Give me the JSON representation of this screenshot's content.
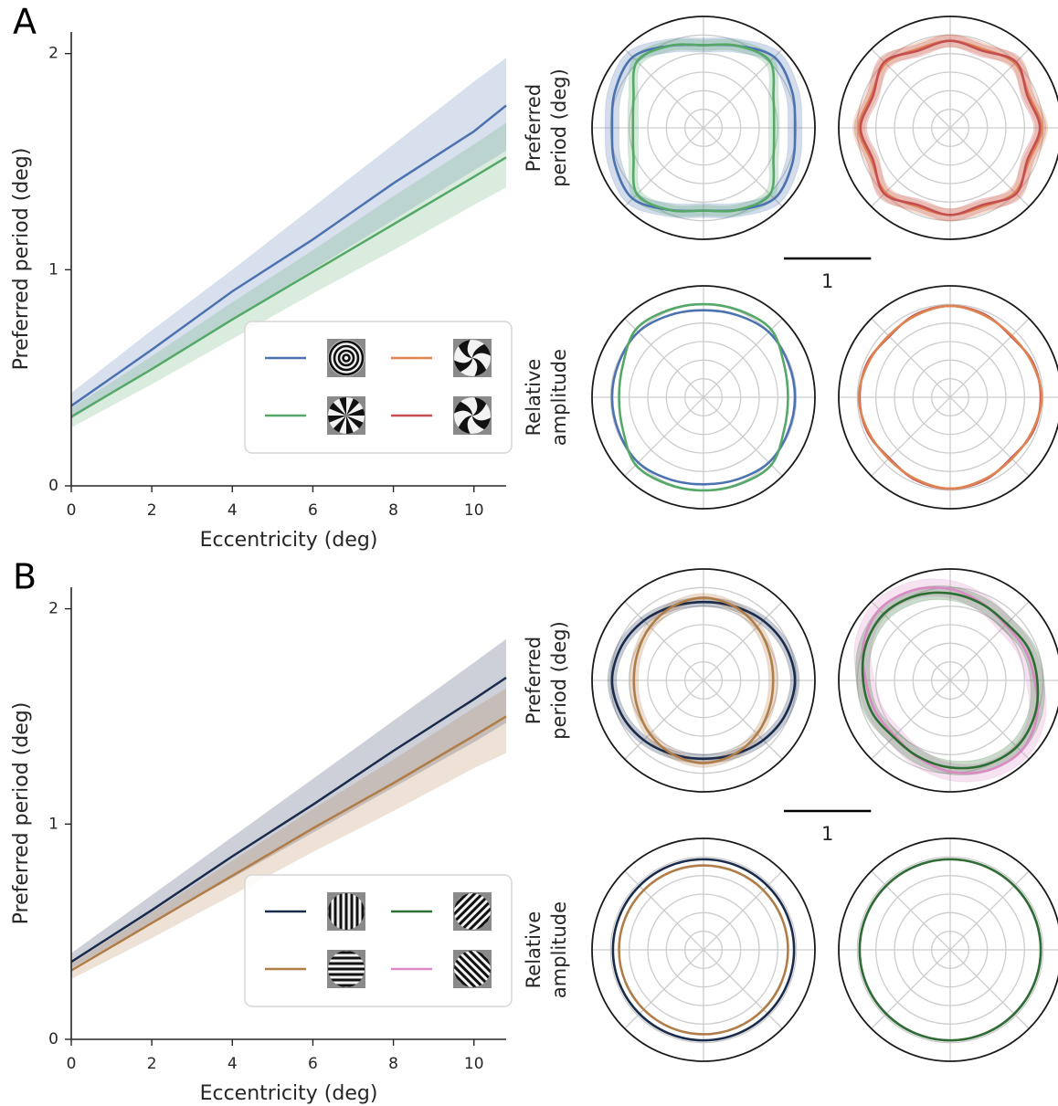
{
  "chart_data": [
    {
      "type": "line",
      "panel": "A",
      "xlabel": "Eccentricity (deg)",
      "ylabel": "Preferred period (deg)",
      "x": [
        0,
        2,
        4,
        6,
        8,
        10,
        10.8
      ],
      "xlim": [
        0,
        10.8
      ],
      "xticks": [
        0,
        2,
        4,
        6,
        8,
        10
      ],
      "ylim": [
        0,
        2.1
      ],
      "yticks": [
        0,
        1,
        2
      ],
      "grid": false,
      "legend": "lower right",
      "legend_colors": [
        "#4c72b0",
        "#55a868",
        "#dd8452",
        "#c44e52"
      ],
      "series": [
        {
          "color": "#4c72b0",
          "values": [
            0.37,
            0.63,
            0.9,
            1.14,
            1.4,
            1.64,
            1.76
          ],
          "lower": [
            0.31,
            0.54,
            0.77,
            1.0,
            1.23,
            1.46,
            1.55
          ],
          "upper": [
            0.43,
            0.72,
            1.0,
            1.29,
            1.58,
            1.87,
            1.98
          ]
        },
        {
          "color": "#55a868",
          "values": [
            0.32,
            0.54,
            0.77,
            0.99,
            1.21,
            1.43,
            1.52
          ],
          "lower": [
            0.27,
            0.47,
            0.68,
            0.89,
            1.09,
            1.3,
            1.38
          ],
          "upper": [
            0.36,
            0.6,
            0.85,
            1.09,
            1.34,
            1.58,
            1.68
          ]
        }
      ]
    },
    {
      "type": "polar",
      "ylabel": [
        "Preferred",
        "period (deg)"
      ],
      "scale_bar": 1,
      "rlim": [
        0,
        1.28
      ],
      "theta": [
        0,
        22.5,
        45,
        67.5,
        90,
        112.5,
        135,
        157.5,
        180,
        202.5,
        225,
        247.5,
        270,
        292.5,
        315,
        337.5
      ],
      "series": [
        {
          "color": "#4c72b0",
          "values": [
            1.05,
            1.1,
            1.15,
            1.02,
            0.95,
            1.02,
            1.15,
            1.1,
            1.05,
            1.1,
            1.15,
            1.02,
            0.95,
            1.02,
            1.15,
            1.1
          ],
          "lower": [
            0.97,
            1.02,
            1.07,
            0.94,
            0.87,
            0.94,
            1.07,
            1.02,
            0.97,
            1.02,
            1.07,
            0.94,
            0.87,
            0.94,
            1.07,
            1.02
          ],
          "upper": [
            1.13,
            1.18,
            1.23,
            1.1,
            1.03,
            1.1,
            1.23,
            1.18,
            1.13,
            1.18,
            1.23,
            1.1,
            1.03,
            1.1,
            1.23,
            1.18
          ]
        },
        {
          "color": "#55a868",
          "values": [
            0.81,
            0.87,
            1.08,
            1.02,
            0.95,
            1.02,
            1.08,
            0.87,
            0.81,
            0.87,
            1.08,
            1.02,
            0.95,
            1.02,
            1.08,
            0.87
          ],
          "lower": [
            0.75,
            0.81,
            1.02,
            0.96,
            0.89,
            0.96,
            1.02,
            0.81,
            0.75,
            0.81,
            1.02,
            0.96,
            0.89,
            0.96,
            1.02,
            0.81
          ],
          "upper": [
            0.87,
            0.93,
            1.14,
            1.08,
            1.01,
            1.08,
            1.14,
            0.93,
            0.87,
            0.93,
            1.14,
            1.08,
            1.01,
            1.08,
            1.14,
            0.93
          ]
        }
      ]
    },
    {
      "type": "polar",
      "rlim": [
        0,
        1.28
      ],
      "theta": [
        0,
        22.5,
        45,
        67.5,
        90,
        112.5,
        135,
        157.5,
        180,
        202.5,
        225,
        247.5,
        270,
        292.5,
        315,
        337.5
      ],
      "series": [
        {
          "color": "#dd8452",
          "values": [
            1.05,
            0.98,
            1.05,
            0.98,
            1.0,
            0.98,
            1.05,
            0.98,
            1.05,
            0.98,
            1.05,
            0.98,
            1.0,
            0.98,
            1.05,
            0.98
          ],
          "lower": [
            0.98,
            0.91,
            0.98,
            0.91,
            0.93,
            0.91,
            0.98,
            0.91,
            0.98,
            0.91,
            0.98,
            0.91,
            0.93,
            0.91,
            0.98,
            0.91
          ],
          "upper": [
            1.12,
            1.05,
            1.12,
            1.05,
            1.07,
            1.05,
            1.12,
            1.05,
            1.12,
            1.05,
            1.12,
            1.05,
            1.07,
            1.05,
            1.12,
            1.05
          ]
        },
        {
          "color": "#c44e52",
          "values": [
            1.03,
            0.96,
            1.07,
            0.96,
            1.0,
            0.96,
            1.07,
            0.96,
            1.03,
            0.96,
            1.07,
            0.96,
            1.0,
            0.96,
            1.07,
            0.96
          ],
          "lower": [
            0.96,
            0.89,
            1.0,
            0.89,
            0.93,
            0.89,
            1.0,
            0.89,
            0.96,
            0.89,
            1.0,
            0.89,
            0.93,
            0.89,
            1.0,
            0.89
          ],
          "upper": [
            1.1,
            1.03,
            1.14,
            1.03,
            1.07,
            1.03,
            1.14,
            1.03,
            1.1,
            1.03,
            1.14,
            1.03,
            1.07,
            1.03,
            1.14,
            1.03
          ]
        }
      ]
    },
    {
      "type": "polar",
      "ylabel": [
        "Relative",
        "amplitude"
      ],
      "rlim": [
        0,
        1.28
      ],
      "theta": [
        0,
        22.5,
        45,
        67.5,
        90,
        112.5,
        135,
        157.5,
        180,
        202.5,
        225,
        247.5,
        270,
        292.5,
        315,
        337.5
      ],
      "series": [
        {
          "color": "#4c72b0",
          "values": [
            1.05,
            1.05,
            1.06,
            1.02,
            1.0,
            1.02,
            1.06,
            1.05,
            1.05,
            1.05,
            1.06,
            1.02,
            1.0,
            1.02,
            1.06,
            1.05
          ]
        },
        {
          "color": "#55a868",
          "values": [
            0.97,
            1.0,
            1.1,
            1.08,
            1.07,
            1.08,
            1.1,
            1.0,
            0.97,
            1.0,
            1.1,
            1.08,
            1.07,
            1.08,
            1.1,
            1.0
          ]
        }
      ]
    },
    {
      "type": "polar",
      "rlim": [
        0,
        1.28
      ],
      "theta": [
        0,
        22.5,
        45,
        67.5,
        90,
        112.5,
        135,
        157.5,
        180,
        202.5,
        225,
        247.5,
        270,
        292.5,
        315,
        337.5
      ],
      "series": [
        {
          "color": "#c44e52",
          "values": [
            1.04,
            1.03,
            0.99,
            1.03,
            1.05,
            1.03,
            0.99,
            1.03,
            1.04,
            1.03,
            0.99,
            1.03,
            1.05,
            1.03,
            0.99,
            1.03
          ]
        },
        {
          "color": "#dd8452",
          "values": [
            1.05,
            1.02,
            1.0,
            1.02,
            1.05,
            1.02,
            1.0,
            1.02,
            1.05,
            1.02,
            1.0,
            1.02,
            1.05,
            1.02,
            1.0,
            1.02
          ]
        }
      ]
    },
    {
      "type": "line",
      "panel": "B",
      "xlabel": "Eccentricity (deg)",
      "ylabel": "Preferred period (deg)",
      "x": [
        0,
        2,
        4,
        6,
        8,
        10,
        10.8
      ],
      "xlim": [
        0,
        10.8
      ],
      "xticks": [
        0,
        2,
        4,
        6,
        8,
        10
      ],
      "ylim": [
        0,
        2.1
      ],
      "yticks": [
        0,
        1,
        2
      ],
      "grid": false,
      "legend": "lower right",
      "legend_colors": [
        "#1a2b4c",
        "#b07d48",
        "#2d6e35",
        "#da8bc3"
      ],
      "series": [
        {
          "color": "#1a2b4c",
          "values": [
            0.36,
            0.6,
            0.85,
            1.09,
            1.34,
            1.58,
            1.68
          ],
          "lower": [
            0.33,
            0.54,
            0.75,
            0.96,
            1.17,
            1.38,
            1.47
          ],
          "upper": [
            0.4,
            0.67,
            0.94,
            1.21,
            1.48,
            1.75,
            1.86
          ]
        },
        {
          "color": "#b07d48",
          "values": [
            0.32,
            0.54,
            0.76,
            0.98,
            1.19,
            1.41,
            1.5
          ],
          "lower": [
            0.28,
            0.47,
            0.67,
            0.87,
            1.06,
            1.26,
            1.33
          ],
          "upper": [
            0.35,
            0.59,
            0.83,
            1.07,
            1.3,
            1.54,
            1.63
          ]
        }
      ]
    },
    {
      "type": "polar",
      "ylabel": [
        "Preferred",
        "period (deg)"
      ],
      "scale_bar": 1,
      "rlim": [
        0,
        1.28
      ],
      "theta": [
        0,
        22.5,
        45,
        67.5,
        90,
        112.5,
        135,
        157.5,
        180,
        202.5,
        225,
        247.5,
        270,
        292.5,
        315,
        337.5
      ],
      "series": [
        {
          "color": "#1a2b4c",
          "values": [
            1.05,
            1.02,
            0.97,
            0.92,
            0.9,
            0.92,
            0.97,
            1.02,
            1.05,
            1.02,
            0.97,
            0.92,
            0.9,
            0.92,
            0.97,
            1.02
          ],
          "lower": [
            1.0,
            0.97,
            0.92,
            0.87,
            0.85,
            0.87,
            0.92,
            0.97,
            1.0,
            0.97,
            0.92,
            0.87,
            0.85,
            0.87,
            0.92,
            0.97
          ],
          "upper": [
            1.1,
            1.07,
            1.02,
            0.97,
            0.95,
            0.97,
            1.02,
            1.07,
            1.1,
            1.07,
            1.02,
            0.97,
            0.95,
            0.97,
            1.02,
            1.07
          ]
        },
        {
          "color": "#b07d48",
          "values": [
            0.8,
            0.82,
            0.87,
            0.92,
            0.95,
            0.92,
            0.87,
            0.82,
            0.8,
            0.82,
            0.87,
            0.92,
            0.95,
            0.92,
            0.87,
            0.82
          ],
          "lower": [
            0.75,
            0.77,
            0.82,
            0.87,
            0.9,
            0.87,
            0.82,
            0.77,
            0.75,
            0.77,
            0.82,
            0.87,
            0.9,
            0.87,
            0.82,
            0.77
          ],
          "upper": [
            0.85,
            0.87,
            0.92,
            0.97,
            1.0,
            0.97,
            0.92,
            0.87,
            0.85,
            0.87,
            0.92,
            0.97,
            1.0,
            0.97,
            0.92,
            0.87
          ]
        }
      ]
    },
    {
      "type": "polar",
      "rlim": [
        0,
        1.28
      ],
      "theta": [
        0,
        22.5,
        45,
        67.5,
        90,
        112.5,
        135,
        157.5,
        180,
        202.5,
        225,
        247.5,
        270,
        292.5,
        315,
        337.5
      ],
      "series": [
        {
          "color": "#da8bc3",
          "values": [
            0.97,
            0.93,
            0.9,
            0.96,
            1.05,
            1.12,
            1.15,
            1.08,
            0.97,
            0.93,
            0.9,
            0.96,
            1.05,
            1.12,
            1.15,
            1.08
          ],
          "lower": [
            0.87,
            0.83,
            0.8,
            0.86,
            0.95,
            1.02,
            1.05,
            0.98,
            0.87,
            0.83,
            0.8,
            0.86,
            0.95,
            1.02,
            1.05,
            0.98
          ],
          "upper": [
            1.07,
            1.03,
            1.0,
            1.06,
            1.15,
            1.22,
            1.25,
            1.18,
            1.07,
            1.03,
            1.0,
            1.06,
            1.15,
            1.22,
            1.25,
            1.18
          ]
        },
        {
          "color": "#2d6e35",
          "values": [
            1.0,
            0.97,
            0.92,
            0.95,
            1.0,
            1.05,
            1.08,
            1.05,
            1.0,
            0.97,
            0.92,
            0.95,
            1.0,
            1.05,
            1.08,
            1.05
          ],
          "lower": [
            0.92,
            0.89,
            0.84,
            0.87,
            0.92,
            0.97,
            1.0,
            0.97,
            0.92,
            0.89,
            0.84,
            0.87,
            0.92,
            0.97,
            1.0,
            0.97
          ],
          "upper": [
            1.08,
            1.05,
            1.0,
            1.03,
            1.08,
            1.13,
            1.16,
            1.13,
            1.08,
            1.05,
            1.0,
            1.03,
            1.08,
            1.13,
            1.16,
            1.13
          ]
        }
      ]
    },
    {
      "type": "polar",
      "ylabel": [
        "Relative",
        "amplitude"
      ],
      "rlim": [
        0,
        1.28
      ],
      "theta": [
        0,
        22.5,
        45,
        67.5,
        90,
        112.5,
        135,
        157.5,
        180,
        202.5,
        225,
        247.5,
        270,
        292.5,
        315,
        337.5
      ],
      "series": [
        {
          "color": "#1a2b4c",
          "values": [
            1.04,
            1.04,
            1.04,
            1.04,
            1.04,
            1.04,
            1.04,
            1.04,
            1.04,
            1.04,
            1.04,
            1.04,
            1.04,
            1.04,
            1.04,
            1.04
          ]
        },
        {
          "color": "#b07d48",
          "values": [
            0.97,
            0.97,
            0.97,
            0.97,
            0.97,
            0.97,
            0.97,
            0.97,
            0.97,
            0.97,
            0.97,
            0.97,
            0.97,
            0.97,
            0.97,
            0.97
          ]
        }
      ]
    },
    {
      "type": "polar",
      "rlim": [
        0,
        1.28
      ],
      "theta": [
        0,
        22.5,
        45,
        67.5,
        90,
        112.5,
        135,
        157.5,
        180,
        202.5,
        225,
        247.5,
        270,
        292.5,
        315,
        337.5
      ],
      "series": [
        {
          "color": "#da8bc3",
          "values": [
            1.04,
            1.04,
            1.04,
            1.04,
            1.04,
            1.04,
            1.04,
            1.04,
            1.04,
            1.04,
            1.04,
            1.04,
            1.04,
            1.04,
            1.04,
            1.04
          ]
        },
        {
          "color": "#2d6e35",
          "values": [
            1.04,
            1.04,
            1.04,
            1.04,
            1.04,
            1.04,
            1.04,
            1.04,
            1.04,
            1.04,
            1.04,
            1.04,
            1.04,
            1.04,
            1.04,
            1.04
          ]
        }
      ]
    }
  ]
}
